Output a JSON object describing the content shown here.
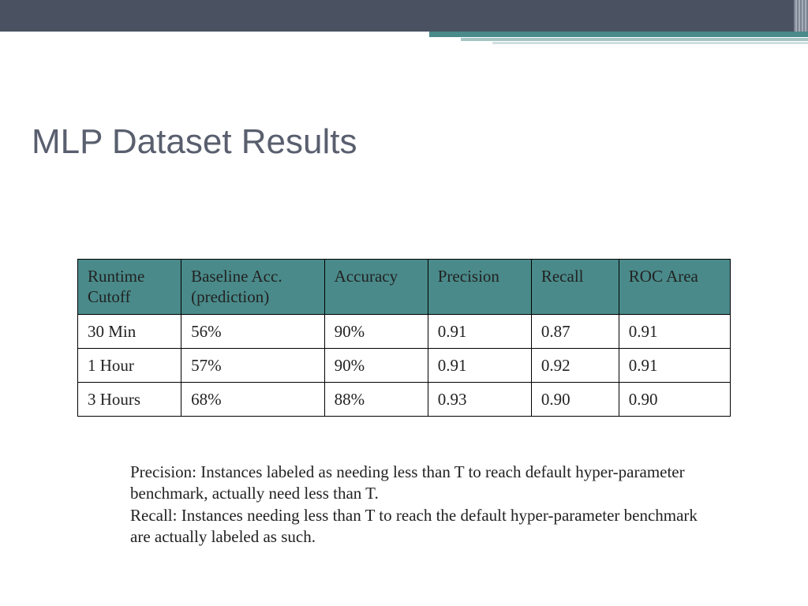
{
  "slide": {
    "title": "MLP Dataset Results",
    "banner_color": "#4a5262",
    "accent_colors": [
      "#4a8a8a",
      "#a5c5c5",
      "#d0e0e0"
    ],
    "title_color": "#595f6e",
    "title_fontsize": 44
  },
  "table": {
    "header_bg": "#4a8a8a",
    "border_color": "#000000",
    "cell_fontsize": 21,
    "columns": [
      "Runtime Cutoff",
      "Baseline Acc. (prediction)",
      "Accuracy",
      "Precision",
      "Recall",
      "ROC Area"
    ],
    "rows": [
      [
        "30 Min",
        "56%",
        "90%",
        "0.91",
        "0.87",
        "0.91"
      ],
      [
        "1 Hour",
        "57%",
        "90%",
        "0.91",
        "0.92",
        "0.91"
      ],
      [
        "3 Hours",
        "68%",
        "88%",
        "0.93",
        "0.90",
        "0.90"
      ]
    ]
  },
  "notes": {
    "precision": "Precision: Instances labeled as needing less than T to reach default hyper-parameter benchmark, actually need less than T.",
    "recall": "Recall: Instances needing less than T to reach the default hyper-parameter benchmark are actually labeled as such."
  }
}
